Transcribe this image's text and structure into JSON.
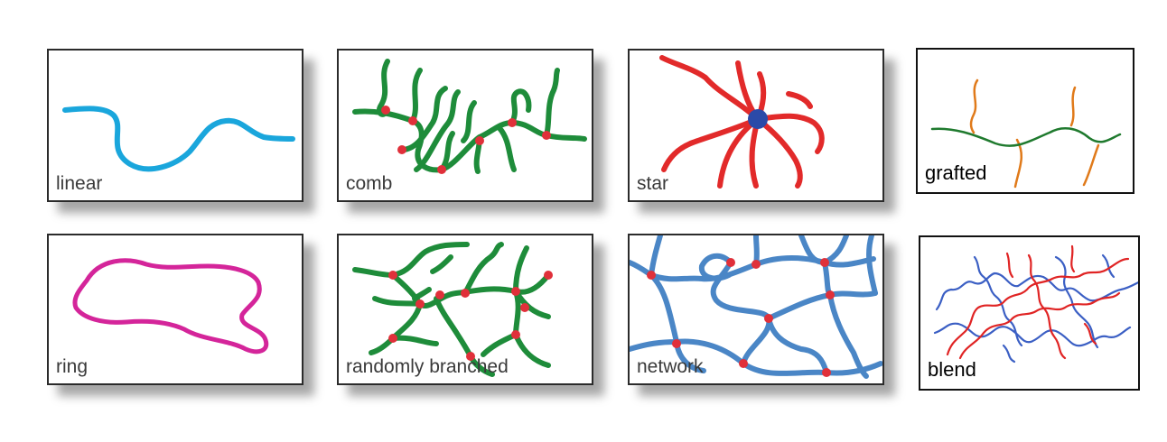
{
  "colors": {
    "linear": "#1aa6dc",
    "comb": "#1e8c3a",
    "junction": "#e0303a",
    "star": "#e22a2a",
    "star_core": "#2b4aa8",
    "network": "#4a86c6",
    "ring": "#d4259a",
    "grafted_backbone": "#1f7a2e",
    "grafted_side": "#e07a1a",
    "blend_a": "#3b5fc4",
    "blend_b": "#e02424"
  },
  "panels": {
    "linear": "linear",
    "comb": "comb",
    "star": "star",
    "grafted": "grafted",
    "ring": "ring",
    "randomly_branched": "randomly branched",
    "network": "network",
    "blend": "blend"
  }
}
